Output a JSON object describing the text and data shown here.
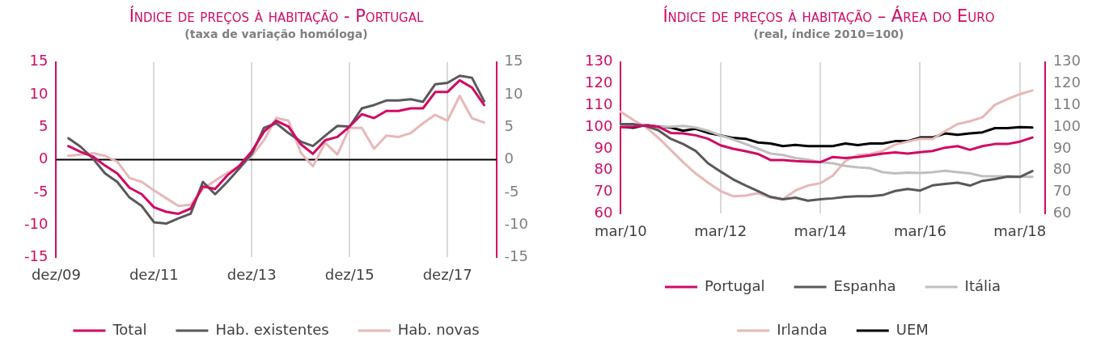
{
  "chart_data": [
    {
      "type": "line",
      "title": "Índice de preços à habitação - Portugal",
      "subtitle": "(taxa de variação homóloga)",
      "categories": [
        "dez/09",
        null,
        null,
        null,
        null,
        null,
        null,
        null,
        "dez/11",
        null,
        null,
        null,
        null,
        null,
        null,
        null,
        "dez/13",
        null,
        null,
        null,
        null,
        null,
        null,
        null,
        "dez/15",
        null,
        null,
        null,
        null,
        null,
        null,
        null,
        "dez/17",
        null,
        null,
        null,
        null
      ],
      "series": [
        {
          "name": "Total",
          "color": "#d10a64",
          "values": [
            null,
            2.1,
            1.2,
            0.5,
            -0.9,
            -2.1,
            -4.3,
            -5.3,
            -7.3,
            -8.0,
            -8.3,
            -7.5,
            -4.1,
            -4.5,
            -2.4,
            -0.9,
            1.3,
            4.3,
            6.0,
            5.1,
            2.4,
            0.9,
            3.0,
            3.5,
            5.1,
            7.0,
            6.4,
            7.5,
            7.5,
            7.9,
            7.9,
            10.4,
            10.4,
            12.2,
            11.1,
            8.4,
            null
          ]
        },
        {
          "name": "Hab. existentes",
          "color": "#595959",
          "values": [
            null,
            3.3,
            2.0,
            0.2,
            -2.1,
            -3.4,
            -5.8,
            -7.1,
            -9.6,
            -9.8,
            -9.0,
            -8.3,
            -3.4,
            -5.3,
            -3.4,
            -1.3,
            0.9,
            4.9,
            5.6,
            4.1,
            2.8,
            2.1,
            3.7,
            5.2,
            5.1,
            7.9,
            8.4,
            9.1,
            9.1,
            9.3,
            8.9,
            11.6,
            11.8,
            12.9,
            12.6,
            9.0,
            null
          ]
        },
        {
          "name": "Hab. novas",
          "color": "#e6b8b7",
          "values": [
            null,
            0.6,
            0.8,
            1.0,
            0.6,
            -0.3,
            -2.8,
            -3.4,
            -4.7,
            -5.9,
            -7.1,
            -6.9,
            -4.5,
            -3.2,
            -2.0,
            -1.0,
            0.6,
            3.0,
            6.4,
            6.0,
            1.1,
            -1.0,
            2.6,
            0.8,
            4.9,
            4.9,
            1.7,
            3.7,
            3.5,
            4.1,
            5.6,
            6.9,
            6.0,
            9.8,
            6.4,
            5.7,
            null
          ]
        }
      ],
      "ylim": [
        -15,
        15
      ],
      "yticks": [
        -15,
        -10,
        -5,
        0,
        5,
        10,
        15
      ],
      "y2lim": [
        -15,
        15
      ],
      "y2ticks": [
        -15,
        -10,
        -5,
        0,
        5,
        10,
        15
      ],
      "ref_lines": [
        {
          "axis": "y",
          "value": 0,
          "color": "#000000"
        }
      ],
      "grid": "x",
      "legend": "bottom",
      "marker": "none",
      "line_style": "solid"
    },
    {
      "type": "line",
      "title": "Índice de preços à habitação – Área do Euro",
      "subtitle": "(real, índice 2010=100)",
      "categories": [
        "mar/10",
        null,
        null,
        null,
        null,
        null,
        null,
        null,
        "mar/12",
        null,
        null,
        null,
        null,
        null,
        null,
        null,
        "mar/14",
        null,
        null,
        null,
        null,
        null,
        null,
        null,
        "mar/16",
        null,
        null,
        null,
        null,
        null,
        null,
        null,
        "mar/18",
        null,
        null
      ],
      "series": [
        {
          "name": "Portugal",
          "color": "#d10a64",
          "values": [
            100.0,
            100.2,
            100.8,
            100.2,
            97.3,
            97.1,
            96.2,
            94.6,
            91.6,
            90.0,
            88.9,
            87.6,
            84.8,
            84.8,
            84.3,
            84.0,
            83.8,
            86.2,
            85.7,
            86.2,
            86.9,
            87.8,
            88.3,
            87.8,
            88.4,
            89.0,
            90.5,
            91.2,
            89.5,
            91.2,
            92.2,
            92.2,
            93.3,
            95.2,
            null
          ]
        },
        {
          "name": "Espanha",
          "color": "#595959",
          "values": [
            101.4,
            101.4,
            100.5,
            98.6,
            94.6,
            92.2,
            89.0,
            83.3,
            79.5,
            75.9,
            73.1,
            70.5,
            67.8,
            66.7,
            67.4,
            66.0,
            66.7,
            67.1,
            67.8,
            68.1,
            68.1,
            68.6,
            70.5,
            71.4,
            70.7,
            73.1,
            73.8,
            74.3,
            73.0,
            75.2,
            76.0,
            77.1,
            77.0,
            79.7,
            null
          ]
        },
        {
          "name": "Itália",
          "color": "#bfbfbf",
          "values": [
            100.8,
            101.0,
            101.0,
            100.0,
            100.2,
            100.5,
            99.8,
            98.3,
            96.2,
            94.3,
            92.2,
            90.0,
            87.8,
            87.1,
            85.7,
            85.0,
            83.8,
            83.3,
            82.1,
            81.4,
            81.0,
            79.2,
            78.6,
            79.0,
            78.8,
            79.2,
            79.8,
            79.2,
            78.6,
            77.3,
            77.3,
            77.3,
            77.1,
            77.0,
            null
          ]
        },
        {
          "name": "Irlanda",
          "color": "#e6b8b7",
          "values": [
            107.1,
            103.3,
            100.0,
            95.2,
            89.5,
            83.8,
            78.6,
            74.3,
            70.5,
            68.1,
            68.4,
            69.5,
            67.4,
            66.7,
            70.7,
            73.0,
            74.1,
            77.6,
            84.3,
            87.1,
            87.6,
            89.0,
            91.9,
            93.3,
            94.6,
            94.6,
            98.1,
            101.4,
            102.7,
            104.5,
            110.3,
            112.9,
            115.2,
            116.9,
            null
          ]
        },
        {
          "name": "UEM",
          "color": "#000000",
          "values": [
            100.2,
            99.7,
            101.0,
            100.2,
            99.8,
            98.3,
            99.2,
            97.3,
            96.2,
            95.0,
            94.6,
            92.9,
            92.4,
            91.2,
            91.8,
            91.2,
            91.2,
            91.2,
            92.4,
            91.7,
            92.4,
            92.4,
            93.5,
            93.5,
            95.2,
            95.2,
            97.1,
            96.4,
            97.1,
            97.6,
            99.5,
            99.5,
            100.0,
            99.8,
            null
          ]
        }
      ],
      "ylim": [
        60,
        130
      ],
      "yticks": [
        60,
        70,
        80,
        90,
        100,
        110,
        120,
        130
      ],
      "y2lim": [
        60,
        130
      ],
      "y2ticks": [
        60,
        70,
        80,
        90,
        100,
        110,
        120,
        130
      ],
      "grid": "x",
      "legend": "bottom",
      "marker": "none",
      "line_style": "solid"
    }
  ]
}
